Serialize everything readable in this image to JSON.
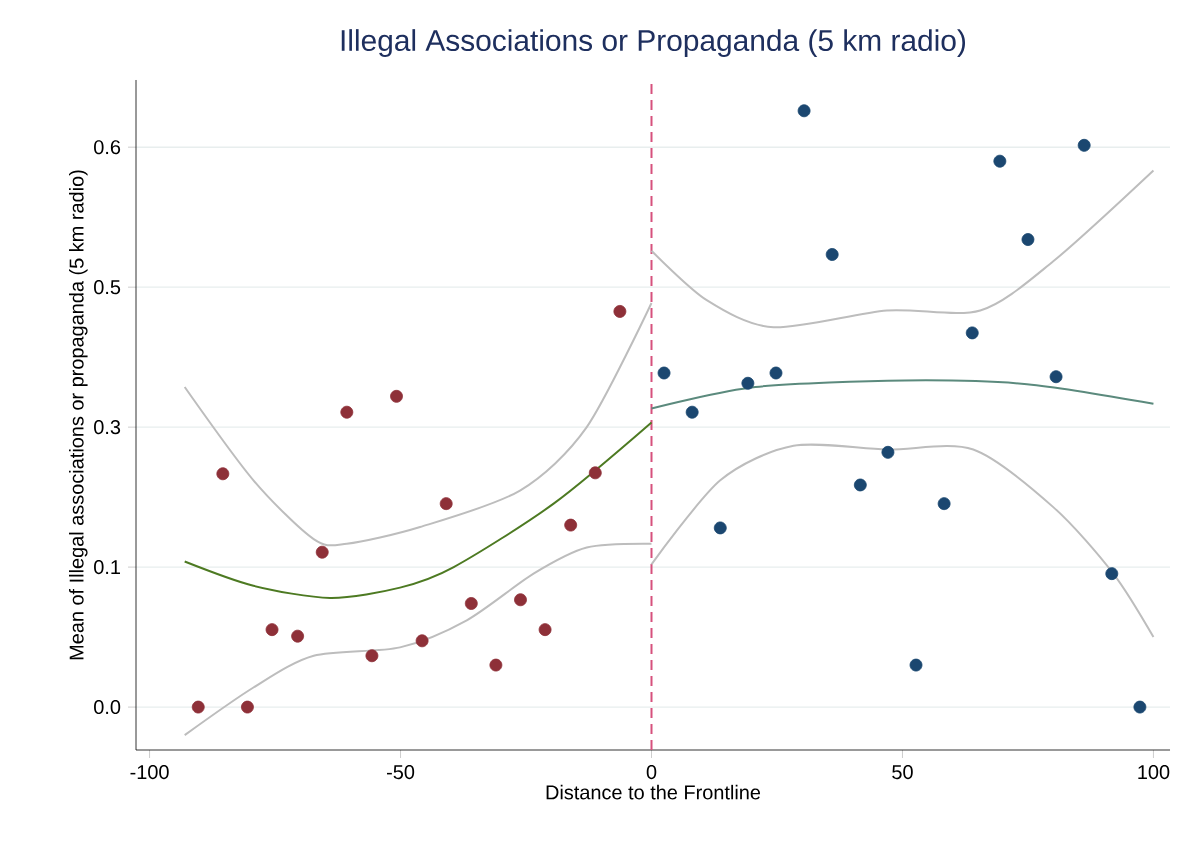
{
  "chart_data": {
    "type": "scatter",
    "title": "Illegal Associations or Propaganda (5 km radio)",
    "xlabel": "Distance to the Frontline",
    "ylabel": "Mean of Illegal associations or propaganda (5 km radio)",
    "xlim": [
      -102.7,
      103.3
    ],
    "ylim": [
      -0.046,
      0.672
    ],
    "xticks": [
      -100,
      -50,
      0,
      50,
      100
    ],
    "yticks": [
      {
        "value": 0,
        "label": "0.0"
      },
      {
        "value": 0.15,
        "label": "0.1"
      },
      {
        "value": 0.3,
        "label": "0.3"
      },
      {
        "value": 0.45,
        "label": "0.5"
      },
      {
        "value": 0.6,
        "label": "0.6"
      }
    ],
    "grid": "y",
    "ref_lines": [
      {
        "axis": "x",
        "value": 0,
        "color": "#d6517d",
        "line_style": "dashed"
      }
    ],
    "series": [
      {
        "marker": "circle",
        "color": "#8e3038",
        "x": [
          -90.3,
          -80.5,
          -85.4,
          -75.6,
          -70.5,
          -65.6,
          -60.7,
          -55.7,
          -50.8,
          -45.7,
          -40.9,
          -35.9,
          -31.0,
          -26.1,
          -21.2,
          -16.1,
          -11.2,
          -6.3
        ],
        "values": [
          0.0,
          0.0,
          0.25,
          0.083,
          0.076,
          0.166,
          0.316,
          0.055,
          0.333,
          0.071,
          0.218,
          0.111,
          0.045,
          0.115,
          0.083,
          0.195,
          0.251,
          0.424
        ]
      },
      {
        "marker": "circle",
        "color": "#1b4770",
        "x": [
          2.5,
          8.1,
          13.7,
          19.2,
          24.8,
          30.4,
          36.0,
          41.6,
          47.1,
          52.7,
          58.3,
          63.9,
          69.4,
          75.0,
          80.6,
          86.2,
          91.7,
          97.3
        ],
        "values": [
          0.358,
          0.316,
          0.192,
          0.347,
          0.358,
          0.639,
          0.485,
          0.238,
          0.273,
          0.045,
          0.218,
          0.401,
          0.585,
          0.501,
          0.354,
          0.602,
          0.143,
          0.0
        ]
      },
      {
        "type": "line",
        "marker": "none",
        "color": "#4d7a22",
        "x": [
          -93,
          -79.3,
          -64,
          -50.1,
          -39.4,
          -19.5,
          0
        ],
        "values": [
          0.156,
          0.13,
          0.117,
          0.128,
          0.15,
          0.218,
          0.305
        ]
      },
      {
        "type": "line",
        "marker": "none",
        "color": "#bdbdbd",
        "x": [
          -93,
          -79.3,
          -67.3,
          -60.7,
          -46.1,
          -26.2,
          -12.9,
          0
        ],
        "values": [
          0.343,
          0.243,
          0.18,
          0.175,
          0.193,
          0.232,
          0.3,
          0.433
        ]
      },
      {
        "type": "line",
        "marker": "none",
        "color": "#bdbdbd",
        "x": [
          -93,
          -79.3,
          -67.3,
          -50.1,
          -36.8,
          -23.5,
          -12.9,
          0
        ],
        "values": [
          -0.03,
          0.021,
          0.055,
          0.064,
          0.093,
          0.143,
          0.171,
          0.175
        ]
      },
      {
        "type": "line",
        "marker": "none",
        "color": "#5b8a7d",
        "x": [
          0,
          20.7,
          50.5,
          74.8,
          100
        ],
        "values": [
          0.32,
          0.343,
          0.35,
          0.346,
          0.325
        ]
      },
      {
        "type": "line",
        "marker": "none",
        "color": "#bdbdbd",
        "x": [
          0,
          11,
          24.3,
          46.9,
          65.5,
          80.1,
          100
        ],
        "values": [
          0.489,
          0.436,
          0.407,
          0.425,
          0.425,
          0.478,
          0.575
        ]
      },
      {
        "type": "line",
        "marker": "none",
        "color": "#bdbdbd",
        "x": [
          0,
          13.7,
          28.3,
          46.9,
          64.1,
          80.1,
          92,
          100
        ],
        "values": [
          0.153,
          0.243,
          0.28,
          0.276,
          0.276,
          0.214,
          0.143,
          0.075
        ]
      }
    ]
  }
}
